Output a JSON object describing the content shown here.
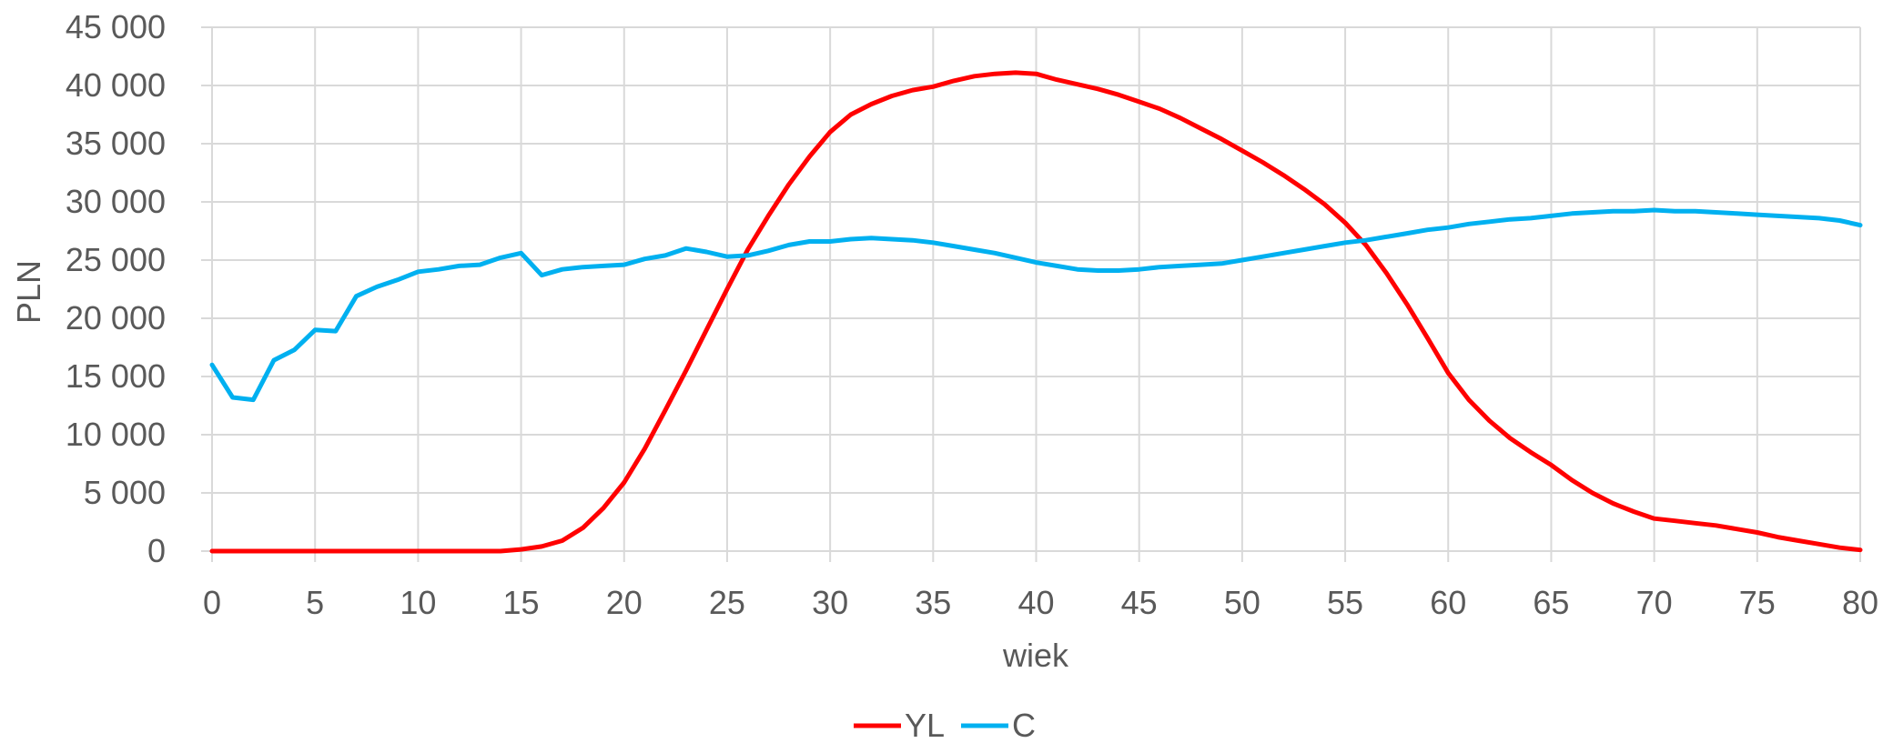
{
  "chart_data": {
    "type": "line",
    "xlabel": "wiek",
    "ylabel": "PLN",
    "xlim": [
      0,
      80
    ],
    "ylim": [
      0,
      45000
    ],
    "x_ticks": [
      0,
      5,
      10,
      15,
      20,
      25,
      30,
      35,
      40,
      45,
      50,
      55,
      60,
      65,
      70,
      75,
      80
    ],
    "x_tick_labels": [
      "0",
      "5",
      "10",
      "15",
      "20",
      "25",
      "30",
      "35",
      "40",
      "45",
      "50",
      "55",
      "60",
      "65",
      "70",
      "75",
      "80"
    ],
    "y_ticks": [
      0,
      5000,
      10000,
      15000,
      20000,
      25000,
      30000,
      35000,
      40000,
      45000
    ],
    "y_tick_labels": [
      "0",
      "5 000",
      "10 000",
      "15 000",
      "20 000",
      "25 000",
      "30 000",
      "35 000",
      "40 000",
      "45 000"
    ],
    "grid": true,
    "legend_position": "bottom",
    "series": [
      {
        "name": "YL",
        "color": "#ff0000",
        "points": [
          [
            0,
            0
          ],
          [
            5,
            0
          ],
          [
            10,
            0
          ],
          [
            14,
            0
          ],
          [
            15,
            150
          ],
          [
            16,
            400
          ],
          [
            17,
            900
          ],
          [
            18,
            2000
          ],
          [
            19,
            3700
          ],
          [
            20,
            5900
          ],
          [
            21,
            8800
          ],
          [
            22,
            12100
          ],
          [
            23,
            15500
          ],
          [
            24,
            19000
          ],
          [
            25,
            22500
          ],
          [
            26,
            25900
          ],
          [
            27,
            28800
          ],
          [
            28,
            31500
          ],
          [
            29,
            33900
          ],
          [
            30,
            36000
          ],
          [
            31,
            37500
          ],
          [
            32,
            38400
          ],
          [
            33,
            39100
          ],
          [
            34,
            39600
          ],
          [
            35,
            39900
          ],
          [
            36,
            40400
          ],
          [
            37,
            40800
          ],
          [
            38,
            41000
          ],
          [
            39,
            41100
          ],
          [
            40,
            41000
          ],
          [
            41,
            40500
          ],
          [
            42,
            40100
          ],
          [
            43,
            39700
          ],
          [
            44,
            39200
          ],
          [
            45,
            38600
          ],
          [
            46,
            38000
          ],
          [
            47,
            37200
          ],
          [
            48,
            36300
          ],
          [
            49,
            35400
          ],
          [
            50,
            34400
          ],
          [
            51,
            33400
          ],
          [
            52,
            32300
          ],
          [
            53,
            31100
          ],
          [
            54,
            29800
          ],
          [
            55,
            28200
          ],
          [
            56,
            26300
          ],
          [
            57,
            23900
          ],
          [
            58,
            21200
          ],
          [
            59,
            18300
          ],
          [
            60,
            15300
          ],
          [
            61,
            13000
          ],
          [
            62,
            11200
          ],
          [
            63,
            9700
          ],
          [
            64,
            8500
          ],
          [
            65,
            7400
          ],
          [
            66,
            6100
          ],
          [
            67,
            5000
          ],
          [
            68,
            4100
          ],
          [
            69,
            3400
          ],
          [
            70,
            2800
          ],
          [
            71,
            2600
          ],
          [
            72,
            2400
          ],
          [
            73,
            2200
          ],
          [
            74,
            1900
          ],
          [
            75,
            1600
          ],
          [
            76,
            1200
          ],
          [
            77,
            900
          ],
          [
            78,
            600
          ],
          [
            79,
            300
          ],
          [
            80,
            100
          ]
        ]
      },
      {
        "name": "C",
        "color": "#00b0f0",
        "points": [
          [
            0,
            16000
          ],
          [
            1,
            13200
          ],
          [
            2,
            13000
          ],
          [
            3,
            16400
          ],
          [
            4,
            17300
          ],
          [
            5,
            19000
          ],
          [
            6,
            18900
          ],
          [
            7,
            21900
          ],
          [
            8,
            22700
          ],
          [
            9,
            23300
          ],
          [
            10,
            24000
          ],
          [
            11,
            24200
          ],
          [
            12,
            24500
          ],
          [
            13,
            24600
          ],
          [
            14,
            25200
          ],
          [
            15,
            25600
          ],
          [
            16,
            23700
          ],
          [
            17,
            24200
          ],
          [
            18,
            24400
          ],
          [
            19,
            24500
          ],
          [
            20,
            24600
          ],
          [
            21,
            25100
          ],
          [
            22,
            25400
          ],
          [
            23,
            26000
          ],
          [
            24,
            25700
          ],
          [
            25,
            25300
          ],
          [
            26,
            25400
          ],
          [
            27,
            25800
          ],
          [
            28,
            26300
          ],
          [
            29,
            26600
          ],
          [
            30,
            26600
          ],
          [
            31,
            26800
          ],
          [
            32,
            26900
          ],
          [
            33,
            26800
          ],
          [
            34,
            26700
          ],
          [
            35,
            26500
          ],
          [
            36,
            26200
          ],
          [
            37,
            25900
          ],
          [
            38,
            25600
          ],
          [
            39,
            25200
          ],
          [
            40,
            24800
          ],
          [
            41,
            24500
          ],
          [
            42,
            24200
          ],
          [
            43,
            24100
          ],
          [
            44,
            24100
          ],
          [
            45,
            24200
          ],
          [
            46,
            24400
          ],
          [
            47,
            24500
          ],
          [
            48,
            24600
          ],
          [
            49,
            24700
          ],
          [
            50,
            25000
          ],
          [
            51,
            25300
          ],
          [
            52,
            25600
          ],
          [
            53,
            25900
          ],
          [
            54,
            26200
          ],
          [
            55,
            26500
          ],
          [
            56,
            26700
          ],
          [
            57,
            27000
          ],
          [
            58,
            27300
          ],
          [
            59,
            27600
          ],
          [
            60,
            27800
          ],
          [
            61,
            28100
          ],
          [
            62,
            28300
          ],
          [
            63,
            28500
          ],
          [
            64,
            28600
          ],
          [
            65,
            28800
          ],
          [
            66,
            29000
          ],
          [
            67,
            29100
          ],
          [
            68,
            29200
          ],
          [
            69,
            29200
          ],
          [
            70,
            29300
          ],
          [
            71,
            29200
          ],
          [
            72,
            29200
          ],
          [
            73,
            29100
          ],
          [
            74,
            29000
          ],
          [
            75,
            28900
          ],
          [
            76,
            28800
          ],
          [
            77,
            28700
          ],
          [
            78,
            28600
          ],
          [
            79,
            28400
          ],
          [
            80,
            28000
          ]
        ]
      }
    ]
  }
}
